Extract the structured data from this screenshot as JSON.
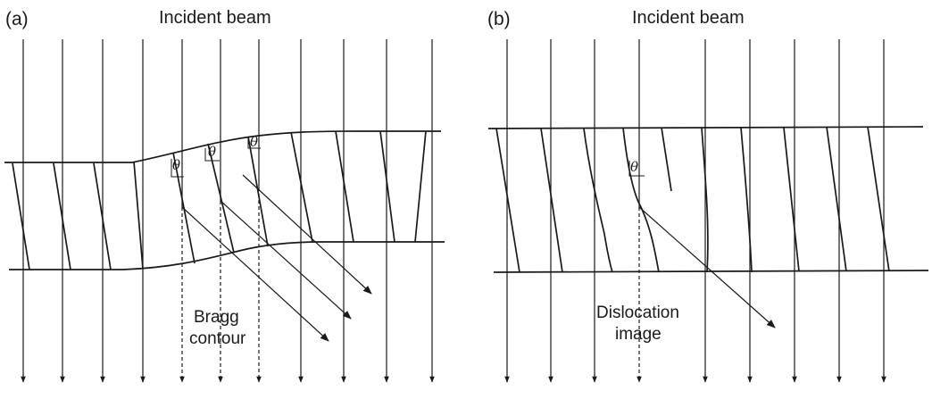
{
  "panel_a": {
    "label": "(a)",
    "beam_label": "Incident beam",
    "contour_label_line1": "Bragg",
    "contour_label_line2": "contour",
    "theta_symbol": "θ"
  },
  "panel_b": {
    "label": "(b)",
    "beam_label": "Incident beam",
    "dislocation_label_line1": "Dislocation",
    "dislocation_label_line2": "image",
    "theta_symbol": "θ"
  },
  "colors": {
    "line": "#1a1a1a",
    "background": "#ffffff"
  }
}
